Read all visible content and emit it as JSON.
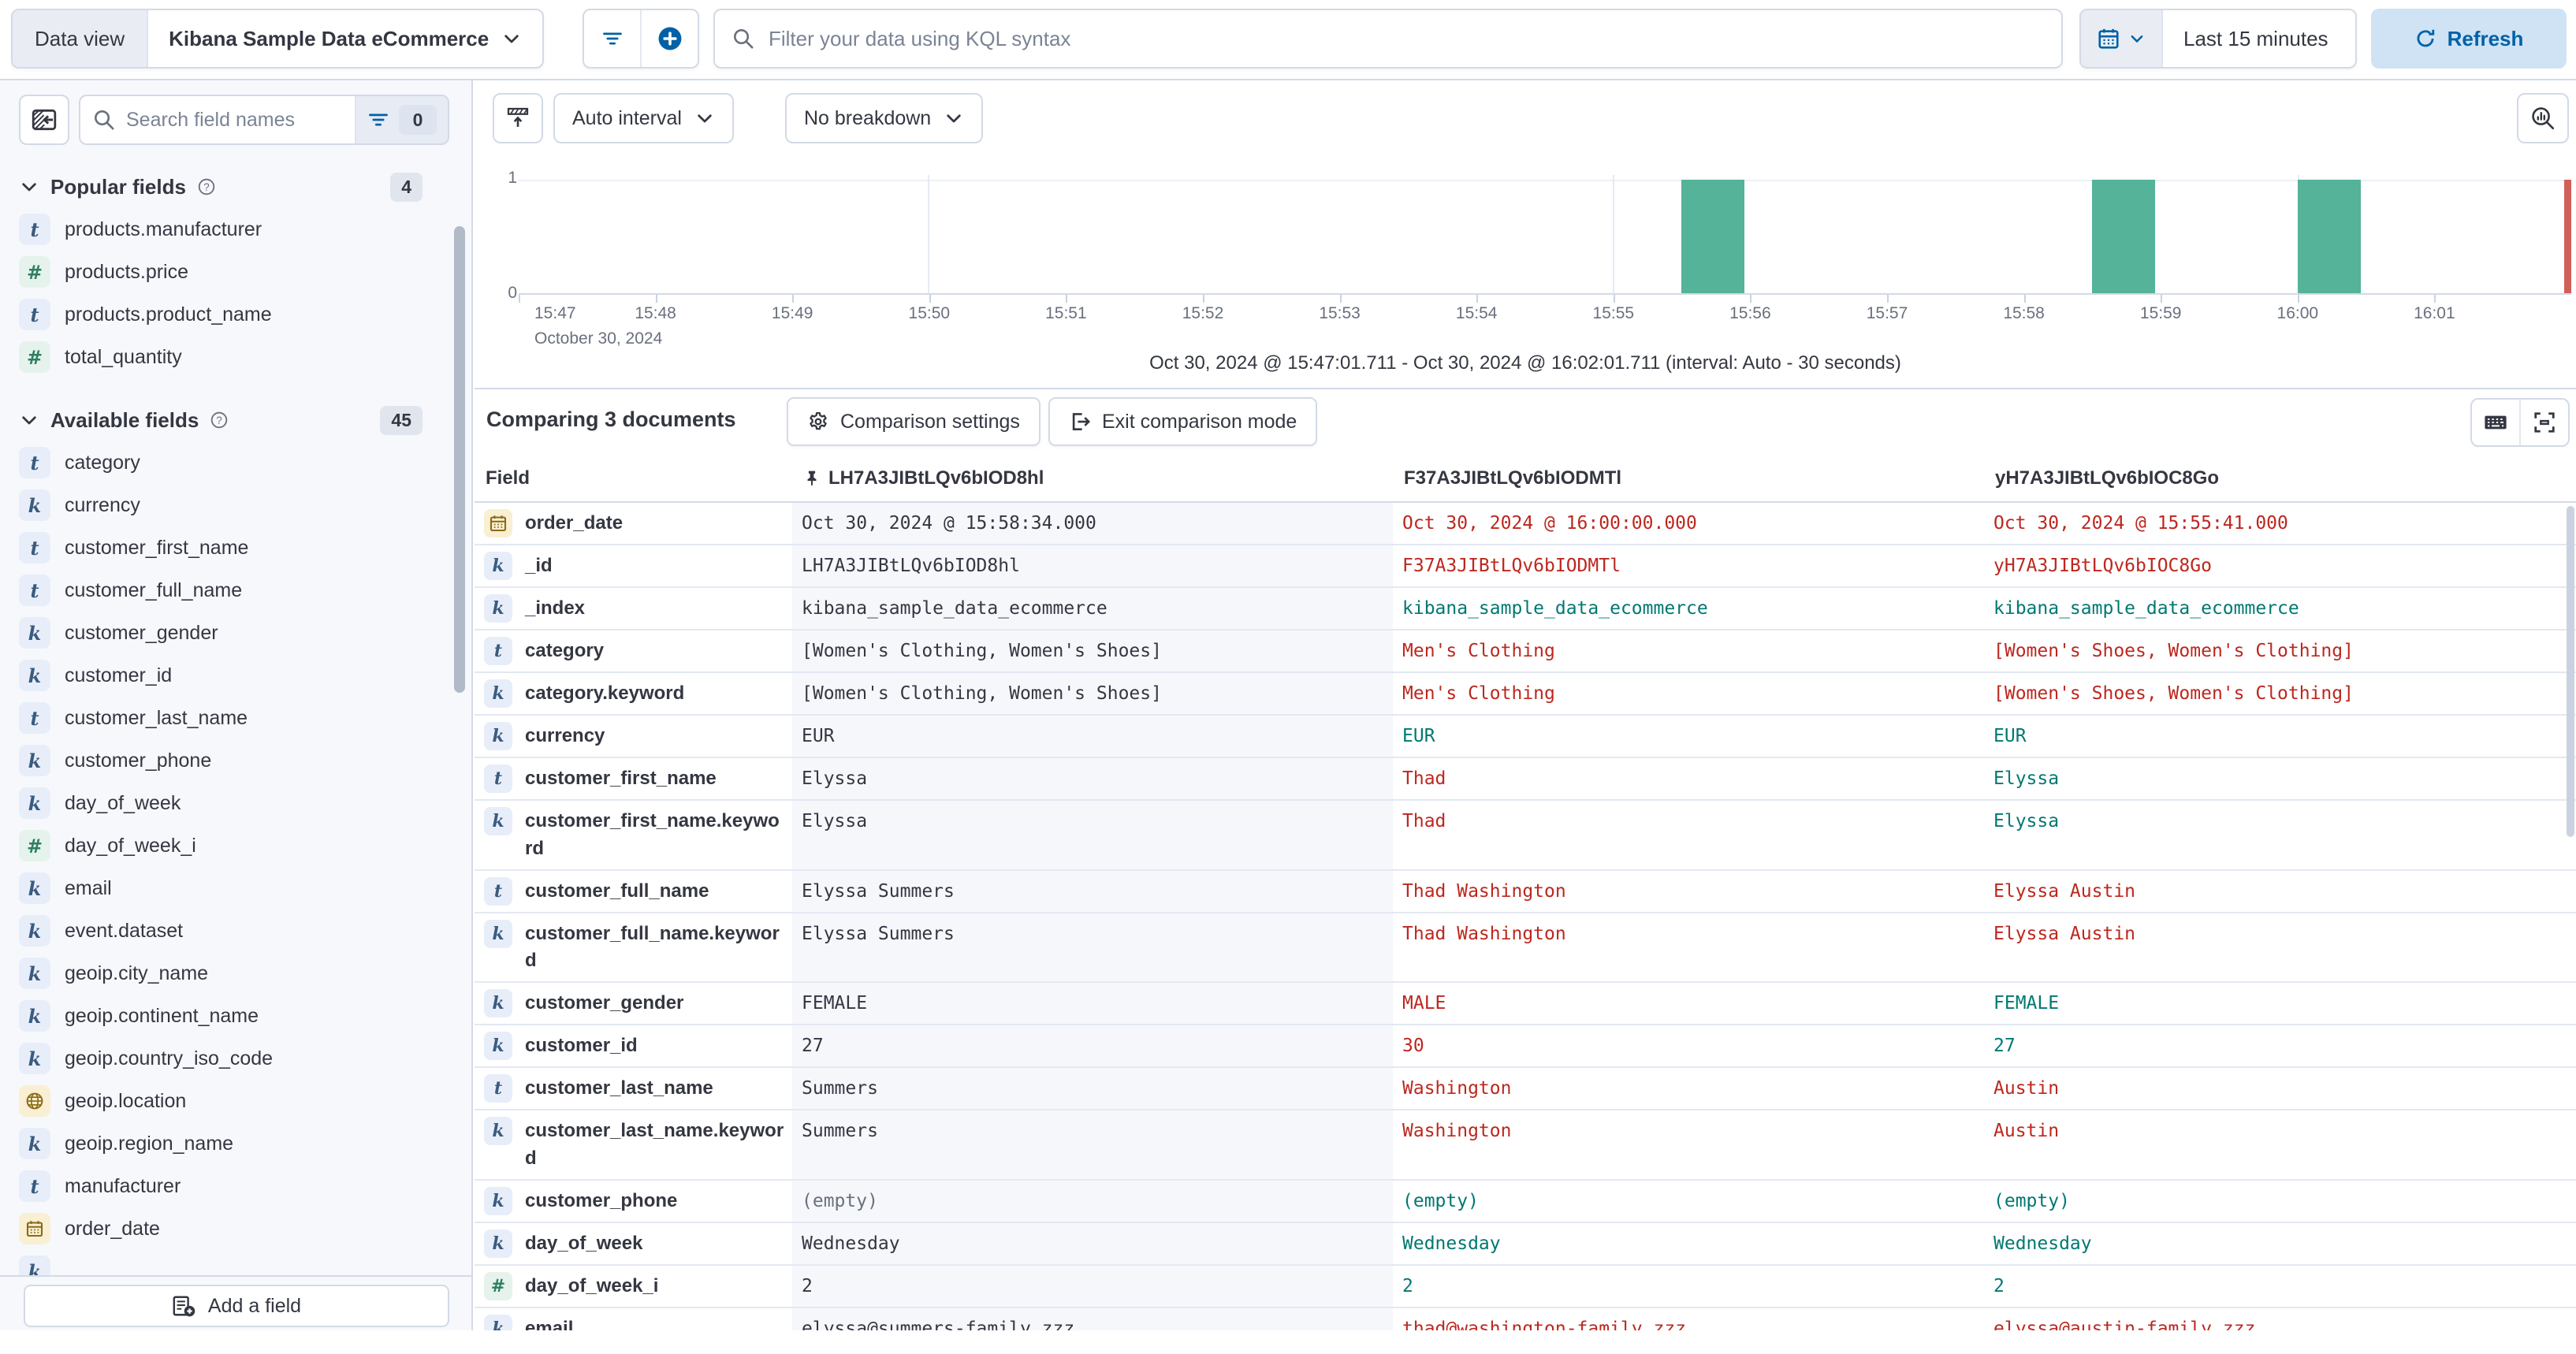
{
  "topbar": {
    "data_view_label": "Data view",
    "data_view_name": "Kibana Sample Data eCommerce",
    "kql_placeholder": "Filter your data using KQL syntax",
    "time_range": "Last 15 minutes",
    "refresh_label": "Refresh"
  },
  "sidebar": {
    "search_placeholder": "Search field names",
    "filter_count": "0",
    "popular": {
      "title": "Popular fields",
      "badge": "4",
      "items": [
        {
          "type": "t",
          "name": "products.manufacturer"
        },
        {
          "type": "num",
          "name": "products.price"
        },
        {
          "type": "t",
          "name": "products.product_name"
        },
        {
          "type": "num",
          "name": "total_quantity"
        }
      ]
    },
    "available": {
      "title": "Available fields",
      "badge": "45",
      "items": [
        {
          "type": "t",
          "name": "category"
        },
        {
          "type": "k",
          "name": "currency"
        },
        {
          "type": "t",
          "name": "customer_first_name"
        },
        {
          "type": "t",
          "name": "customer_full_name"
        },
        {
          "type": "k",
          "name": "customer_gender"
        },
        {
          "type": "k",
          "name": "customer_id"
        },
        {
          "type": "t",
          "name": "customer_last_name"
        },
        {
          "type": "k",
          "name": "customer_phone"
        },
        {
          "type": "k",
          "name": "day_of_week"
        },
        {
          "type": "num",
          "name": "day_of_week_i"
        },
        {
          "type": "k",
          "name": "email"
        },
        {
          "type": "k",
          "name": "event.dataset"
        },
        {
          "type": "k",
          "name": "geoip.city_name"
        },
        {
          "type": "k",
          "name": "geoip.continent_name"
        },
        {
          "type": "k",
          "name": "geoip.country_iso_code"
        },
        {
          "type": "geo",
          "name": "geoip.location"
        },
        {
          "type": "k",
          "name": "geoip.region_name"
        },
        {
          "type": "t",
          "name": "manufacturer"
        },
        {
          "type": "date",
          "name": "order_date"
        },
        {
          "type": "k",
          "name": ""
        }
      ]
    },
    "add_field_label": "Add a field"
  },
  "chart": {
    "interval_label": "Auto interval",
    "breakdown_label": "No breakdown",
    "y_ticks": [
      "1",
      "0"
    ],
    "x_ticks": [
      "15:47",
      "15:48",
      "15:49",
      "15:50",
      "15:51",
      "15:52",
      "15:53",
      "15:54",
      "15:55",
      "15:56",
      "15:57",
      "15:58",
      "15:59",
      "16:00",
      "16:01"
    ],
    "date_label": "October 30, 2024",
    "caption": "Oct 30, 2024 @ 15:47:01.711 - Oct 30, 2024 @ 16:02:01.711 (interval: Auto - 30 seconds)",
    "gridlines_pct": [
      19.93,
      53.3,
      86.66
    ],
    "bars": [
      {
        "left_pct": 56.64,
        "width_pct": 3.07
      },
      {
        "left_pct": 76.64,
        "width_pct": 3.07
      },
      {
        "left_pct": 86.66,
        "width_pct": 3.07
      }
    ],
    "bar_color": "#54B399",
    "now_marker_color": "#D0605A"
  },
  "chart_data": {
    "type": "bar",
    "x_range": [
      "Oct 30, 2024 @ 15:47:01.711",
      "Oct 30, 2024 @ 16:02:01.711"
    ],
    "interval": "Auto - 30 seconds",
    "buckets": [
      {
        "time": "15:55:30",
        "count": 1
      },
      {
        "time": "15:58:30",
        "count": 1
      },
      {
        "time": "16:00:00",
        "count": 1
      }
    ],
    "xticks": [
      "15:47",
      "15:48",
      "15:49",
      "15:50",
      "15:51",
      "15:52",
      "15:53",
      "15:54",
      "15:55",
      "15:56",
      "15:57",
      "15:58",
      "15:59",
      "16:00",
      "16:01"
    ],
    "ylim": [
      0,
      1
    ],
    "grid": true,
    "legend": false
  },
  "comparison": {
    "title": "Comparing 3 documents",
    "settings_label": "Comparison settings",
    "exit_label": "Exit comparison mode"
  },
  "table": {
    "field_header": "Field",
    "doc_columns": [
      {
        "id": "LH7A3JIBtLQv6bIOD8hl",
        "pinned": true
      },
      {
        "id": "F37A3JIBtLQv6bIODMTl",
        "pinned": false
      },
      {
        "id": "yH7A3JIBtLQv6bIOC8Go",
        "pinned": false
      }
    ],
    "rows": [
      {
        "icon": "date",
        "field": "order_date",
        "cells": [
          [
            "Oct 30, 2024 @ 15:58:34.000",
            "base"
          ],
          [
            "Oct 30, 2024 @ 16:00:00.000",
            "diff"
          ],
          [
            "Oct 30, 2024 @ 15:55:41.000",
            "diff"
          ]
        ]
      },
      {
        "icon": "k",
        "field": "_id",
        "cells": [
          [
            "LH7A3JIBtLQv6bIOD8hl",
            "base"
          ],
          [
            "F37A3JIBtLQv6bIODMTl",
            "diff"
          ],
          [
            "yH7A3JIBtLQv6bIOC8Go",
            "diff"
          ]
        ]
      },
      {
        "icon": "k",
        "field": "_index",
        "cells": [
          [
            "kibana_sample_data_ecommerce",
            "base"
          ],
          [
            "kibana_sample_data_ecommerce",
            "same"
          ],
          [
            "kibana_sample_data_ecommerce",
            "same"
          ]
        ]
      },
      {
        "icon": "t",
        "field": "category",
        "cells": [
          [
            "[Women's Clothing, Women's Shoes]",
            "base"
          ],
          [
            "Men's Clothing",
            "diff"
          ],
          [
            "[Women's Shoes, Women's Clothing]",
            "diff"
          ]
        ]
      },
      {
        "icon": "k",
        "field": "category.keyword",
        "cells": [
          [
            "[Women's Clothing, Women's Shoes]",
            "base"
          ],
          [
            "Men's Clothing",
            "diff"
          ],
          [
            "[Women's Shoes, Women's Clothing]",
            "diff"
          ]
        ]
      },
      {
        "icon": "k",
        "field": "currency",
        "cells": [
          [
            "EUR",
            "base"
          ],
          [
            "EUR",
            "same"
          ],
          [
            "EUR",
            "same"
          ]
        ]
      },
      {
        "icon": "t",
        "field": "customer_first_name",
        "cells": [
          [
            "Elyssa",
            "base"
          ],
          [
            "Thad",
            "diff"
          ],
          [
            "Elyssa",
            "same"
          ]
        ]
      },
      {
        "icon": "k",
        "field": "customer_first_name.keyword",
        "cells": [
          [
            "Elyssa",
            "base"
          ],
          [
            "Thad",
            "diff"
          ],
          [
            "Elyssa",
            "same"
          ]
        ]
      },
      {
        "icon": "t",
        "field": "customer_full_name",
        "cells": [
          [
            "Elyssa Summers",
            "base"
          ],
          [
            "Thad Washington",
            "diff"
          ],
          [
            "Elyssa Austin",
            "diff"
          ]
        ]
      },
      {
        "icon": "k",
        "field": "customer_full_name.keyword",
        "cells": [
          [
            "Elyssa Summers",
            "base"
          ],
          [
            "Thad Washington",
            "diff"
          ],
          [
            "Elyssa Austin",
            "diff"
          ]
        ]
      },
      {
        "icon": "k",
        "field": "customer_gender",
        "cells": [
          [
            "FEMALE",
            "base"
          ],
          [
            "MALE",
            "diff"
          ],
          [
            "FEMALE",
            "same"
          ]
        ]
      },
      {
        "icon": "k",
        "field": "customer_id",
        "cells": [
          [
            "27",
            "base"
          ],
          [
            "30",
            "diff"
          ],
          [
            "27",
            "same"
          ]
        ]
      },
      {
        "icon": "t",
        "field": "customer_last_name",
        "cells": [
          [
            "Summers",
            "base"
          ],
          [
            "Washington",
            "diff"
          ],
          [
            "Austin",
            "diff"
          ]
        ]
      },
      {
        "icon": "k",
        "field": "customer_last_name.keyword",
        "cells": [
          [
            "Summers",
            "base"
          ],
          [
            "Washington",
            "diff"
          ],
          [
            "Austin",
            "diff"
          ]
        ]
      },
      {
        "icon": "k",
        "field": "customer_phone",
        "cells": [
          [
            "(empty)",
            "muted"
          ],
          [
            "(empty)",
            "same"
          ],
          [
            "(empty)",
            "same"
          ]
        ]
      },
      {
        "icon": "k",
        "field": "day_of_week",
        "cells": [
          [
            "Wednesday",
            "base"
          ],
          [
            "Wednesday",
            "same"
          ],
          [
            "Wednesday",
            "same"
          ]
        ]
      },
      {
        "icon": "num",
        "field": "day_of_week_i",
        "cells": [
          [
            "2",
            "base"
          ],
          [
            "2",
            "same"
          ],
          [
            "2",
            "same"
          ]
        ]
      },
      {
        "icon": "k",
        "field": "email",
        "cells": [
          [
            "elyssa@summers-family.zzz",
            "base"
          ],
          [
            "thad@washington-family.zzz",
            "diff"
          ],
          [
            "elyssa@austin-family.zzz",
            "diff"
          ]
        ]
      }
    ]
  }
}
